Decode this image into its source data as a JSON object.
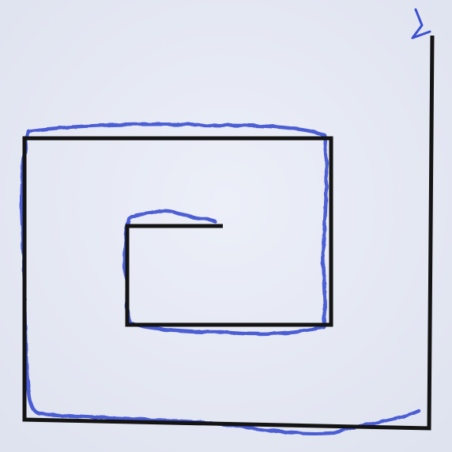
{
  "image": {
    "subject": "square-spiral-tracing",
    "colors": {
      "paper": "#e9ecf6",
      "paper_shade": "#dfe3ef",
      "printed_spiral": "#141414",
      "traced_pen": "#3a4fd0"
    }
  }
}
